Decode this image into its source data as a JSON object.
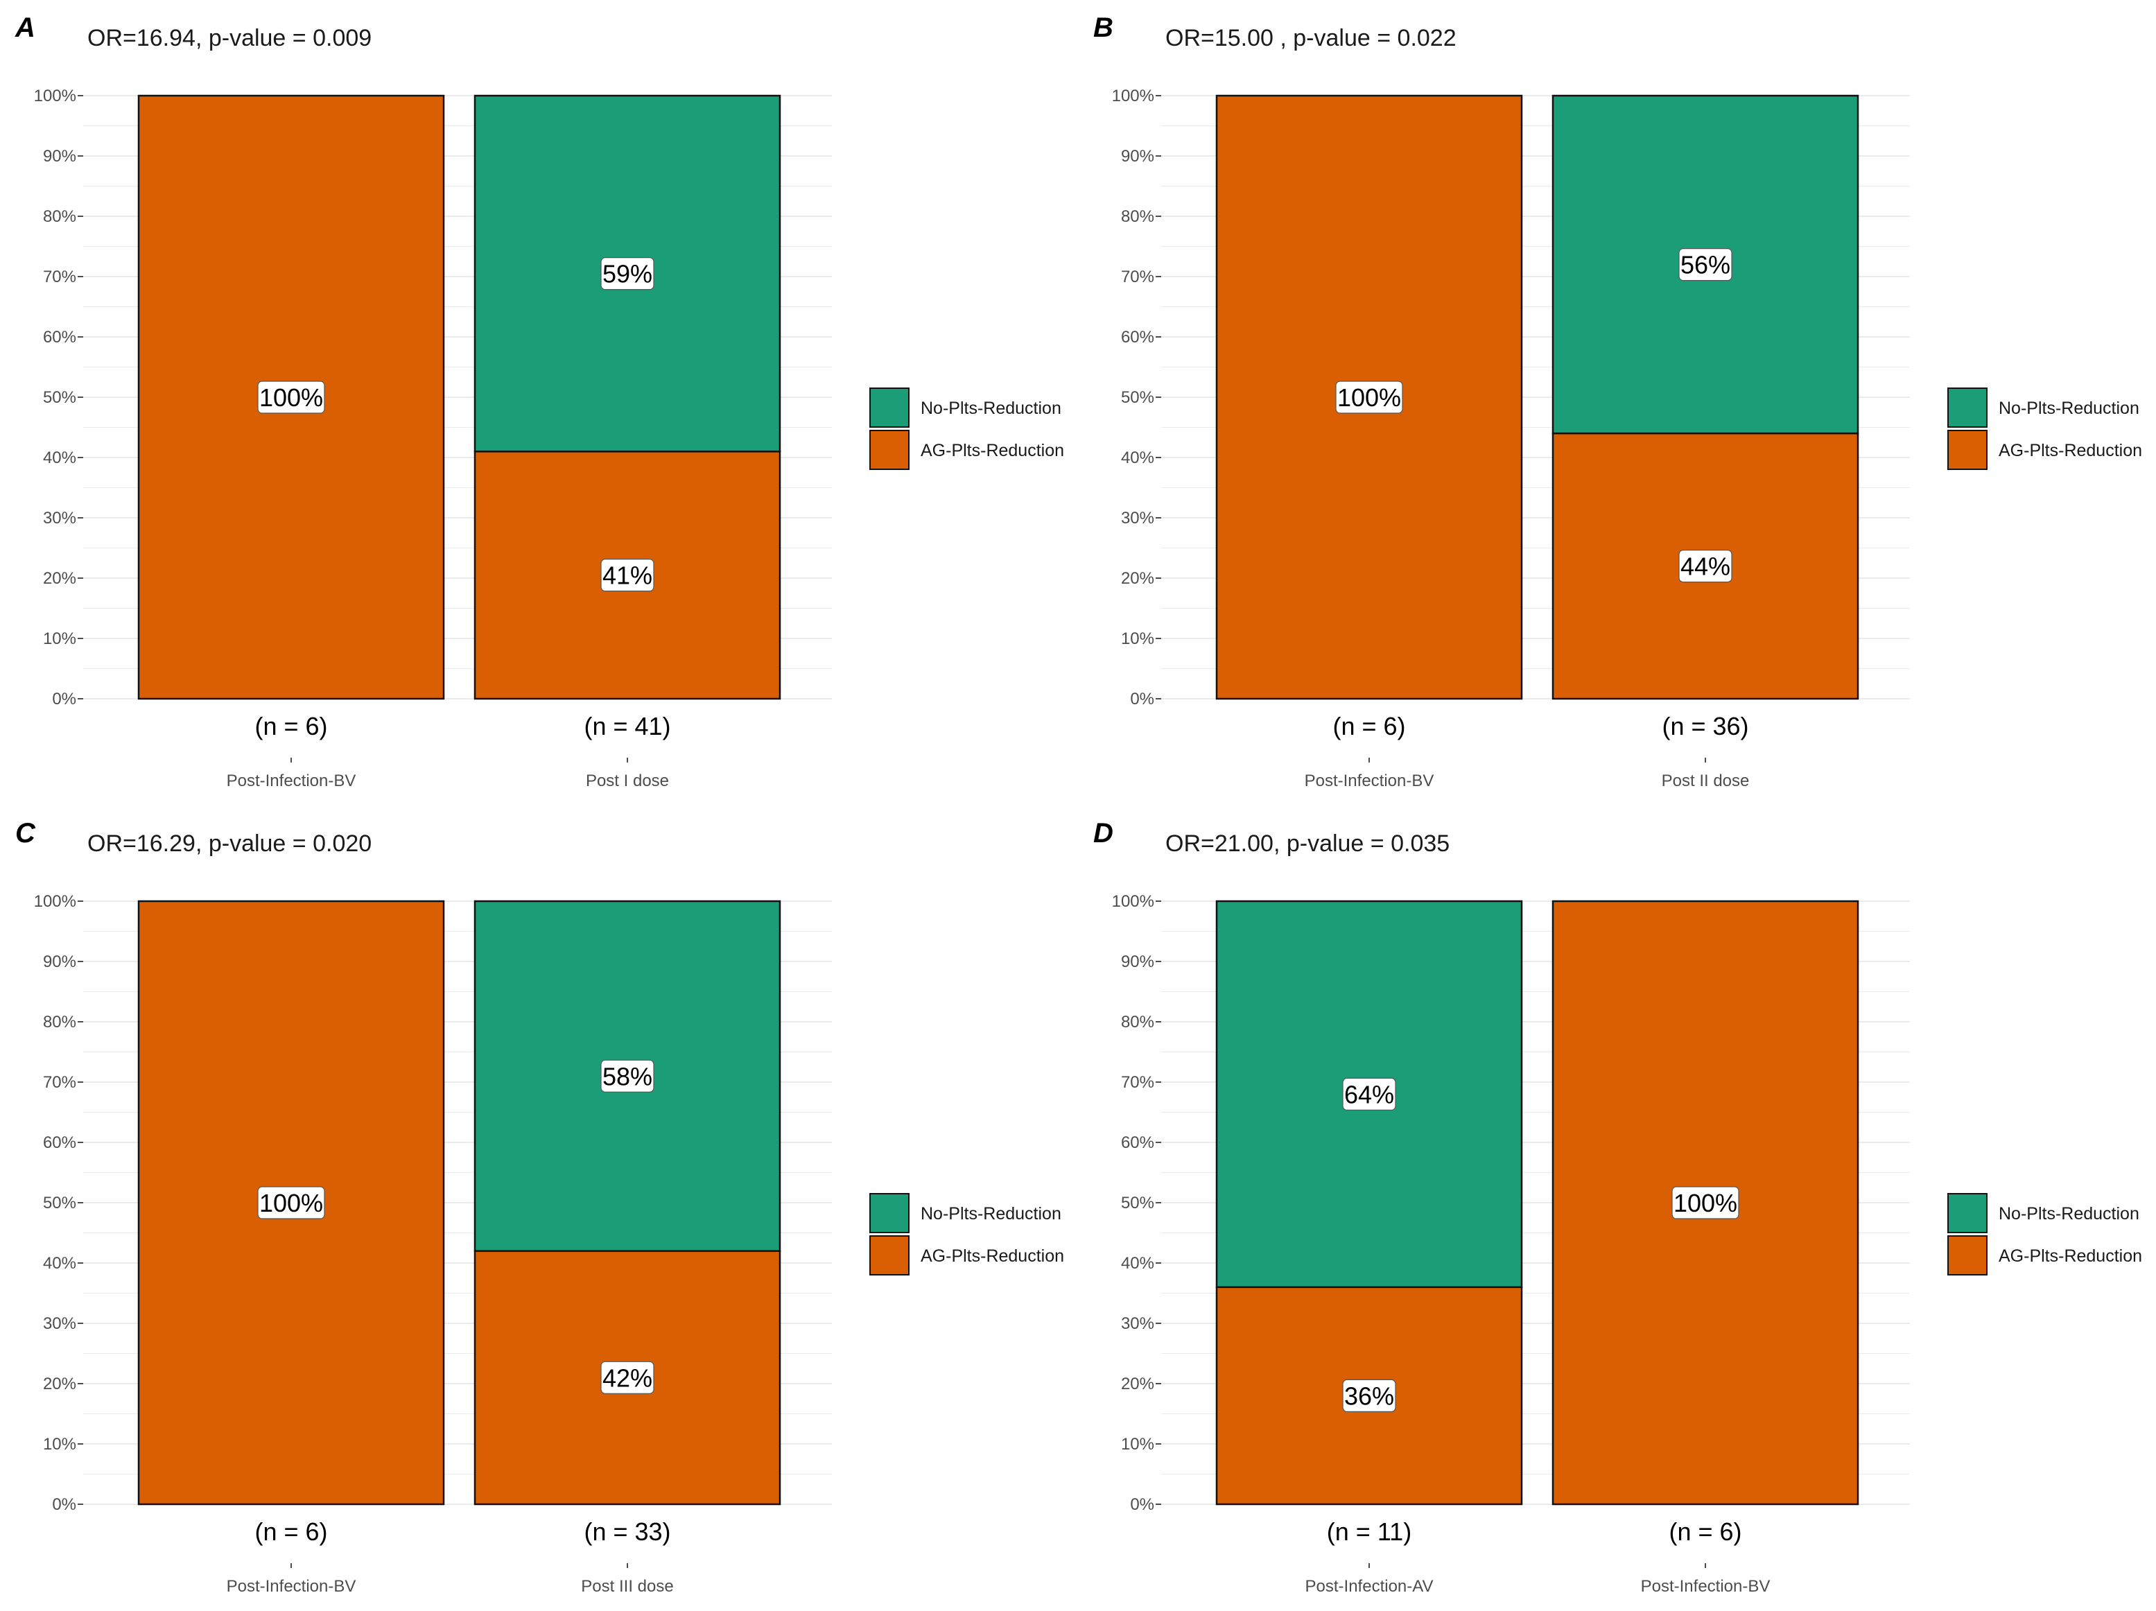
{
  "colors": {
    "no_plts_reduction": "#1b9e77",
    "ag_plts_reduction": "#d95f02",
    "grid": "#ebebeb"
  },
  "legend": {
    "items": [
      "No-Plts-Reduction",
      "AG-Plts-Reduction"
    ]
  },
  "chart_data": [
    {
      "type": "bar",
      "stacked": true,
      "panel": "A",
      "title": "OR=16.94, p-value = 0.009",
      "categories": [
        "Post-Infection-BV",
        "Post I dose"
      ],
      "n_labels": [
        "(n = 6)",
        "(n = 41)"
      ],
      "series": [
        {
          "name": "AG-Plts-Reduction",
          "values": [
            100,
            41
          ],
          "labels": [
            "100%",
            "41%"
          ]
        },
        {
          "name": "No-Plts-Reduction",
          "values": [
            0,
            59
          ],
          "labels": [
            "",
            "59%"
          ]
        }
      ],
      "yticks": [
        "0%",
        "10%",
        "20%",
        "30%",
        "40%",
        "50%",
        "60%",
        "70%",
        "80%",
        "90%",
        "100%"
      ],
      "ylim": [
        0,
        100
      ]
    },
    {
      "type": "bar",
      "stacked": true,
      "panel": "B",
      "title": "OR=15.00 , p-value = 0.022",
      "categories": [
        "Post-Infection-BV",
        "Post II dose"
      ],
      "n_labels": [
        "(n = 6)",
        "(n = 36)"
      ],
      "series": [
        {
          "name": "AG-Plts-Reduction",
          "values": [
            100,
            44
          ],
          "labels": [
            "100%",
            "44%"
          ]
        },
        {
          "name": "No-Plts-Reduction",
          "values": [
            0,
            56
          ],
          "labels": [
            "",
            "56%"
          ]
        }
      ],
      "yticks": [
        "0%",
        "10%",
        "20%",
        "30%",
        "40%",
        "50%",
        "60%",
        "70%",
        "80%",
        "90%",
        "100%"
      ],
      "ylim": [
        0,
        100
      ]
    },
    {
      "type": "bar",
      "stacked": true,
      "panel": "C",
      "title": "OR=16.29, p-value = 0.020",
      "categories": [
        "Post-Infection-BV",
        "Post III dose"
      ],
      "n_labels": [
        "(n = 6)",
        "(n = 33)"
      ],
      "series": [
        {
          "name": "AG-Plts-Reduction",
          "values": [
            100,
            42
          ],
          "labels": [
            "100%",
            "42%"
          ]
        },
        {
          "name": "No-Plts-Reduction",
          "values": [
            0,
            58
          ],
          "labels": [
            "",
            "58%"
          ]
        }
      ],
      "yticks": [
        "0%",
        "10%",
        "20%",
        "30%",
        "40%",
        "50%",
        "60%",
        "70%",
        "80%",
        "90%",
        "100%"
      ],
      "ylim": [
        0,
        100
      ]
    },
    {
      "type": "bar",
      "stacked": true,
      "panel": "D",
      "title": "OR=21.00, p-value = 0.035",
      "categories": [
        "Post-Infection-AV",
        "Post-Infection-BV"
      ],
      "n_labels": [
        "(n = 11)",
        "(n = 6)"
      ],
      "series": [
        {
          "name": "AG-Plts-Reduction",
          "values": [
            36,
            100
          ],
          "labels": [
            "36%",
            "100%"
          ]
        },
        {
          "name": "No-Plts-Reduction",
          "values": [
            64,
            0
          ],
          "labels": [
            "64%",
            ""
          ]
        }
      ],
      "yticks": [
        "0%",
        "10%",
        "20%",
        "30%",
        "40%",
        "50%",
        "60%",
        "70%",
        "80%",
        "90%",
        "100%"
      ],
      "ylim": [
        0,
        100
      ]
    }
  ]
}
